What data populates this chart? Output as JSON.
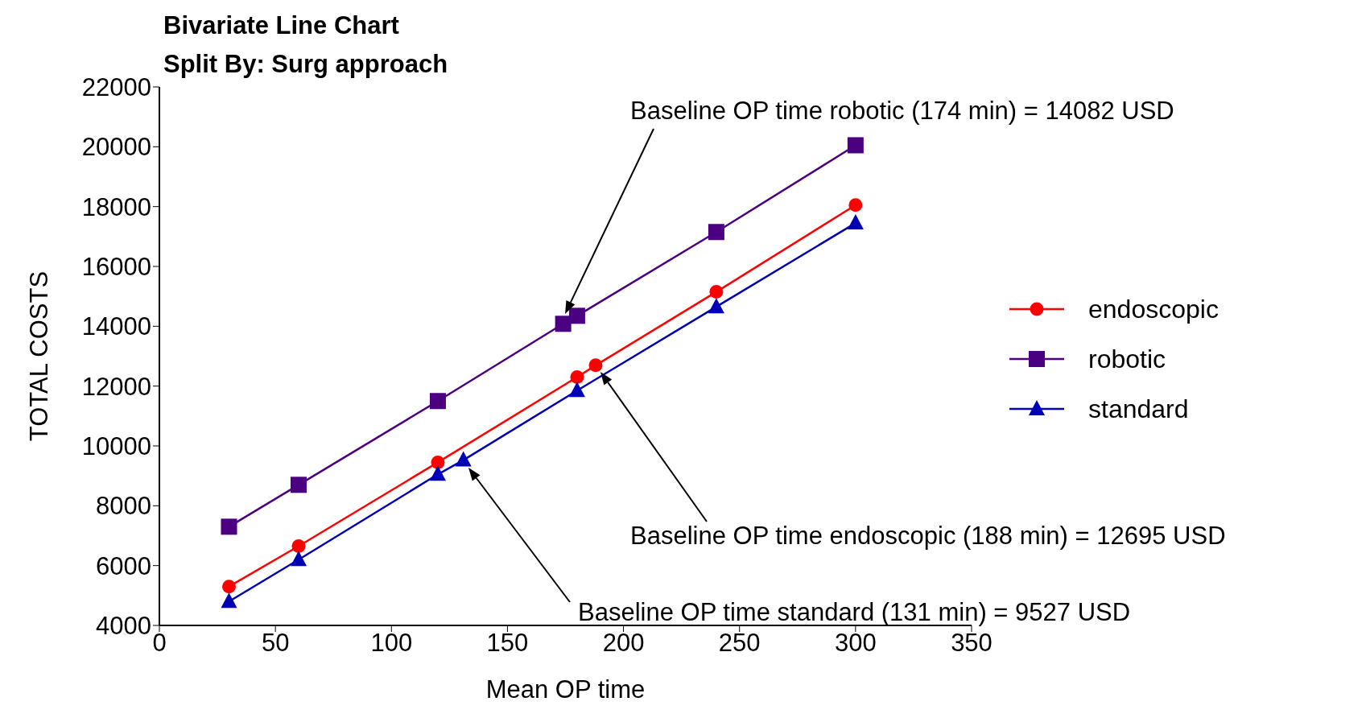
{
  "chart_data": {
    "type": "line",
    "title": "Bivariate Line Chart",
    "subtitle": "Split By: Surg approach",
    "xlabel": "Mean OP time",
    "ylabel": "TOTAL COSTS",
    "xlim": [
      0,
      350
    ],
    "xticks": [
      0,
      50,
      100,
      150,
      200,
      250,
      300,
      350
    ],
    "ylim": [
      4000,
      22000
    ],
    "yticks": [
      4000,
      6000,
      8000,
      10000,
      12000,
      14000,
      16000,
      18000,
      20000,
      22000
    ],
    "grid": false,
    "legend": "right",
    "line_style": "solid",
    "series": [
      {
        "name": "endoscopic",
        "color": "#ff0000",
        "marker": "circle",
        "x": [
          30,
          60,
          120,
          180,
          188,
          240,
          300
        ],
        "values": [
          5300,
          6650,
          9450,
          12300,
          12695,
          15150,
          18050
        ]
      },
      {
        "name": "robotic",
        "color": "#4b0082",
        "marker": "square",
        "x": [
          30,
          60,
          120,
          174,
          180,
          240,
          300
        ],
        "values": [
          7300,
          8700,
          11500,
          14082,
          14350,
          17150,
          20050
        ]
      },
      {
        "name": "standard",
        "color": "#0000b4",
        "marker": "triangle",
        "x": [
          30,
          60,
          120,
          131,
          180,
          240,
          300
        ],
        "values": [
          4800,
          6200,
          9050,
          9527,
          11850,
          14650,
          17450
        ]
      }
    ],
    "annotations": [
      "Baseline OP time robotic  (174 min) = 14082 USD",
      "Baseline OP time endoscopic  (188 min) = 12695 USD",
      "Baseline OP time standard  (131 min) = 9527 USD"
    ]
  }
}
